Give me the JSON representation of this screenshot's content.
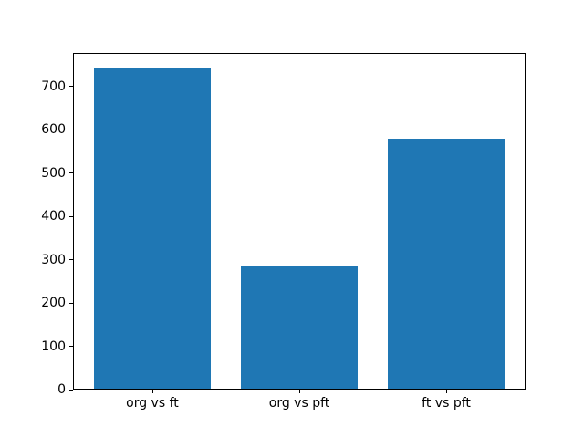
{
  "chart_data": {
    "type": "bar",
    "categories": [
      "org vs ft",
      "org vs pft",
      "ft vs pft"
    ],
    "values": [
      740,
      283,
      578
    ],
    "bar_color": "#1f77b4",
    "ylim": [
      0,
      777
    ],
    "yticks": [
      0,
      100,
      200,
      300,
      400,
      500,
      600,
      700
    ],
    "grid": false,
    "legend_position": "none"
  }
}
